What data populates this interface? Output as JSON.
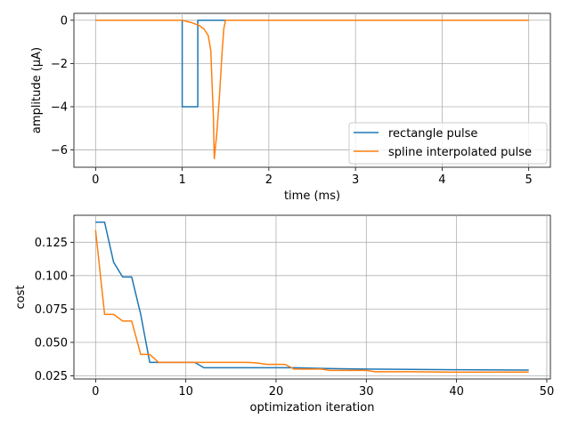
{
  "chart_data": [
    {
      "type": "line",
      "xlabel": "time (ms)",
      "ylabel": "amplitude (µA)",
      "xlim": [
        -0.25,
        5.25
      ],
      "ylim": [
        -6.8,
        0.32
      ],
      "xticks": [
        0,
        1,
        2,
        3,
        4,
        5
      ],
      "yticks": [
        -6,
        -4,
        -2,
        0
      ],
      "xtick_labels": [
        "0",
        "1",
        "2",
        "3",
        "4",
        "5"
      ],
      "ytick_labels": [
        "−6",
        "−4",
        "−2",
        "0"
      ],
      "grid": true,
      "legend_position": "lower-right",
      "series": [
        {
          "name": "rectangle pulse",
          "color": "#1f77b4",
          "x": [
            0,
            1.0,
            1.0,
            1.18,
            1.18,
            5
          ],
          "y": [
            0,
            0,
            -4,
            -4,
            0,
            0
          ]
        },
        {
          "name": "spline interpolated pulse",
          "color": "#ff7f0e",
          "x": [
            0,
            1.0,
            1.1,
            1.2,
            1.25,
            1.3,
            1.33,
            1.36,
            1.37,
            1.4,
            1.43,
            1.46,
            1.48,
            1.5,
            5
          ],
          "y": [
            0,
            0,
            -0.1,
            -0.25,
            -0.4,
            -0.7,
            -1.4,
            -4.5,
            -6.4,
            -5.2,
            -3.5,
            -1.5,
            -0.4,
            0,
            0
          ]
        }
      ]
    },
    {
      "type": "line",
      "xlabel": "optimization iteration",
      "ylabel": "cost",
      "xlim": [
        -2.4,
        50.4
      ],
      "ylim": [
        0.0226,
        0.1452
      ],
      "xticks": [
        0,
        10,
        20,
        30,
        40,
        50
      ],
      "yticks": [
        0.025,
        0.05,
        0.075,
        0.1,
        0.125
      ],
      "xtick_labels": [
        "0",
        "10",
        "20",
        "30",
        "40",
        "50"
      ],
      "ytick_labels": [
        "0.025",
        "0.050",
        "0.075",
        "0.100",
        "0.125"
      ],
      "grid": true,
      "series": [
        {
          "name": "rectangle pulse",
          "color": "#1f77b4",
          "x": [
            0,
            1,
            2,
            3,
            4,
            5,
            6,
            7,
            8,
            9,
            10,
            11,
            12,
            15,
            20,
            22,
            25,
            30,
            35,
            40,
            48
          ],
          "y": [
            0.14,
            0.14,
            0.11,
            0.099,
            0.099,
            0.071,
            0.035,
            0.035,
            0.035,
            0.035,
            0.035,
            0.035,
            0.031,
            0.031,
            0.031,
            0.031,
            0.0305,
            0.03,
            0.0298,
            0.0295,
            0.0293
          ]
        },
        {
          "name": "spline interpolated pulse",
          "color": "#ff7f0e",
          "x": [
            0,
            1,
            2,
            3,
            4,
            5,
            6,
            7,
            10,
            15,
            17,
            18,
            19,
            21,
            22,
            25,
            26,
            30,
            31,
            35,
            40,
            48
          ],
          "y": [
            0.134,
            0.071,
            0.071,
            0.066,
            0.066,
            0.041,
            0.041,
            0.035,
            0.035,
            0.035,
            0.035,
            0.0345,
            0.0335,
            0.0335,
            0.03,
            0.03,
            0.029,
            0.029,
            0.028,
            0.028,
            0.0277,
            0.0278
          ]
        }
      ]
    }
  ]
}
